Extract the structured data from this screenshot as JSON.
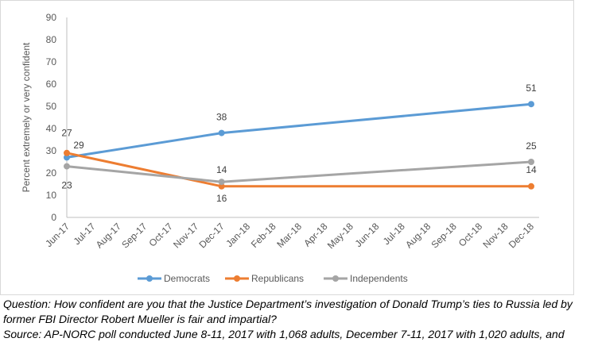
{
  "chart_data": {
    "type": "line",
    "title": "",
    "xlabel": "",
    "ylabel": "Percent extremely or very confident",
    "ylim": [
      0,
      90
    ],
    "yticks": [
      0,
      10,
      20,
      30,
      40,
      50,
      60,
      70,
      80,
      90
    ],
    "x_tick_labels": [
      "Jun-17",
      "Jul-17",
      "Aug-17",
      "Sep-17",
      "Oct-17",
      "Nov-17",
      "Dec-17",
      "Jan-18",
      "Feb-18",
      "Mar-18",
      "Apr-18",
      "May-18",
      "Jun-18",
      "Jul-18",
      "Aug-18",
      "Sep-18",
      "Oct-18",
      "Nov-18",
      "Dec-18"
    ],
    "grid": false,
    "legend_position": "bottom",
    "series": [
      {
        "name": "Democrats",
        "color": "#5b9bd5",
        "points": [
          {
            "x": "Jun-17",
            "y": 27
          },
          {
            "x": "Dec-17",
            "y": 38
          },
          {
            "x": "Dec-18",
            "y": 51
          }
        ],
        "labels": [
          "27",
          "38",
          "51"
        ]
      },
      {
        "name": "Republicans",
        "color": "#ed7d31",
        "points": [
          {
            "x": "Jun-17",
            "y": 29
          },
          {
            "x": "Dec-17",
            "y": 14
          },
          {
            "x": "Dec-18",
            "y": 14
          }
        ],
        "labels": [
          "29",
          "14",
          "14"
        ]
      },
      {
        "name": "Independents",
        "color": "#a5a5a5",
        "points": [
          {
            "x": "Jun-17",
            "y": 23
          },
          {
            "x": "Dec-17",
            "y": 16
          },
          {
            "x": "Dec-18",
            "y": 25
          }
        ],
        "labels": [
          "23",
          "16",
          "25"
        ]
      }
    ]
  },
  "caption": {
    "question_line1": "Question: How confident are you that the Justice Department’s investigation of Donald Trump’s ties to Russia led by",
    "question_line2": "former FBI Director Robert Mueller is fair and impartial?",
    "source": "Source: AP-NORC poll conducted June 8-11, 2017 with 1,068 adults, December 7-11, 2017 with 1,020 adults, and"
  }
}
